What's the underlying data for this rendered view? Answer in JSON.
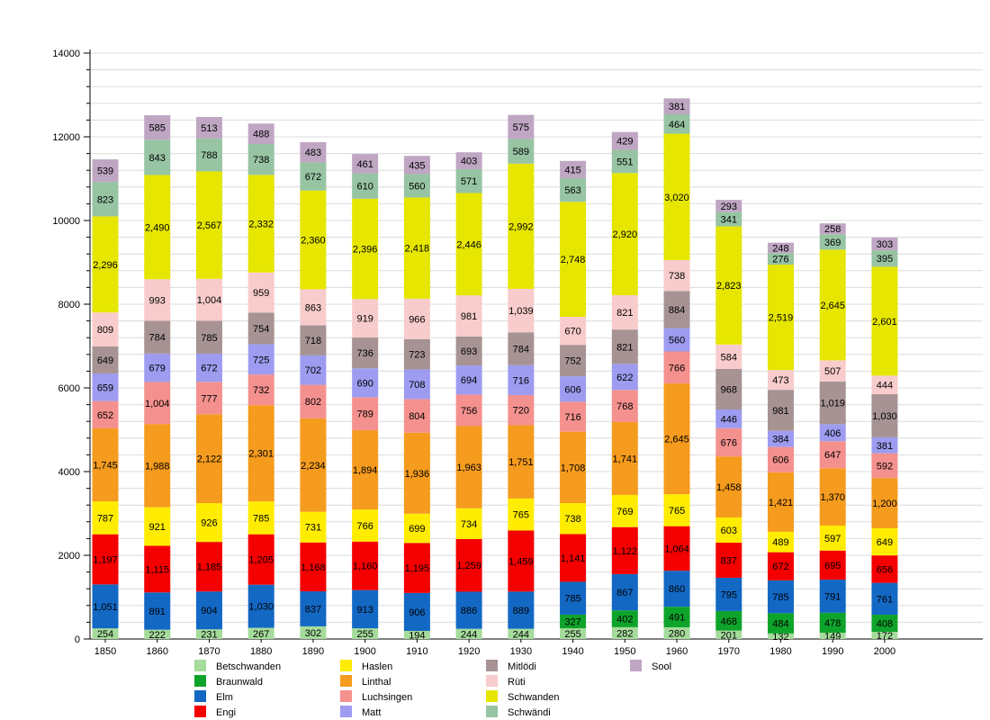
{
  "chart_data": {
    "type": "bar",
    "stacked": true,
    "title": "",
    "xlabel": "",
    "ylabel": "",
    "grid": true,
    "legend_position": "bottom",
    "categories": [
      "1850",
      "1860",
      "1870",
      "1880",
      "1890",
      "1900",
      "1910",
      "1920",
      "1930",
      "1940",
      "1950",
      "1960",
      "1970",
      "1980",
      "1990",
      "2000"
    ],
    "series": [
      {
        "name": "Betschwanden",
        "color": "#a5db9b",
        "values": [
          254,
          222,
          231,
          267,
          302,
          255,
          194,
          244,
          244,
          255,
          282,
          280,
          201,
          132,
          149,
          172
        ]
      },
      {
        "name": "Braunwald",
        "color": "#0ea42b",
        "values": [
          0,
          0,
          0,
          0,
          0,
          0,
          0,
          0,
          0,
          327,
          402,
          491,
          468,
          484,
          478,
          408
        ]
      },
      {
        "name": "Elm",
        "color": "#1368c4",
        "values": [
          1051,
          891,
          904,
          1030,
          837,
          913,
          906,
          886,
          889,
          785,
          867,
          860,
          795,
          785,
          791,
          761
        ]
      },
      {
        "name": "Engi",
        "color": "#f40000",
        "values": [
          1197,
          1115,
          1185,
          1205,
          1168,
          1160,
          1195,
          1259,
          1459,
          1141,
          1122,
          1064,
          837,
          672,
          695,
          656
        ]
      },
      {
        "name": "Haslen",
        "color": "#ffec00",
        "values": [
          787,
          921,
          926,
          785,
          731,
          766,
          699,
          734,
          765,
          738,
          769,
          765,
          603,
          489,
          597,
          649
        ]
      },
      {
        "name": "Linthal",
        "color": "#f59b1e",
        "values": [
          1745,
          1988,
          2122,
          2301,
          2234,
          1894,
          1936,
          1963,
          1751,
          1708,
          1741,
          2645,
          1458,
          1421,
          1370,
          1200
        ]
      },
      {
        "name": "Luchsingen",
        "color": "#f4918e",
        "values": [
          652,
          1004,
          777,
          732,
          802,
          789,
          804,
          756,
          720,
          716,
          768,
          766,
          676,
          606,
          647,
          592
        ]
      },
      {
        "name": "Matt",
        "color": "#9d9cf0",
        "values": [
          659,
          679,
          672,
          725,
          702,
          690,
          708,
          694,
          716,
          606,
          622,
          560,
          446,
          384,
          406,
          381
        ]
      },
      {
        "name": "Mitlödi",
        "color": "#a79393",
        "values": [
          649,
          784,
          785,
          754,
          718,
          736,
          723,
          693,
          784,
          752,
          821,
          884,
          968,
          981,
          1019,
          1030
        ]
      },
      {
        "name": "Rüti",
        "color": "#f8cccc",
        "values": [
          809,
          993,
          1004,
          959,
          863,
          919,
          966,
          981,
          1039,
          670,
          821,
          738,
          584,
          473,
          507,
          444
        ]
      },
      {
        "name": "Schwanden",
        "color": "#e6e600",
        "values": [
          2296,
          2490,
          2567,
          2332,
          2360,
          2396,
          2418,
          2446,
          2992,
          2748,
          2920,
          3020,
          2823,
          2519,
          2645,
          2601
        ]
      },
      {
        "name": "Schwändi",
        "color": "#97c4a3",
        "values": [
          823,
          843,
          788,
          738,
          672,
          610,
          560,
          571,
          589,
          563,
          551,
          464,
          341,
          276,
          369,
          395
        ]
      },
      {
        "name": "Sool",
        "color": "#bfa6c3",
        "values": [
          539,
          585,
          513,
          488,
          483,
          461,
          435,
          403,
          575,
          415,
          429,
          381,
          293,
          248,
          258,
          303
        ]
      }
    ],
    "y_axis": {
      "min": 0,
      "max": 14000,
      "major_tick": 2000,
      "minor_tick": 400,
      "tick_labels": [
        "0",
        "2000",
        "4000",
        "6000",
        "8000",
        "10000",
        "12000",
        "14000"
      ]
    },
    "legend_columns": [
      [
        "Betschwanden",
        "Braunwald",
        "Elm",
        "Engi"
      ],
      [
        "Haslen",
        "Linthal",
        "Luchsingen",
        "Matt"
      ],
      [
        "Mitlödi",
        "Rüti",
        "Schwanden",
        "Schwändi"
      ],
      [
        "Sool"
      ]
    ]
  }
}
